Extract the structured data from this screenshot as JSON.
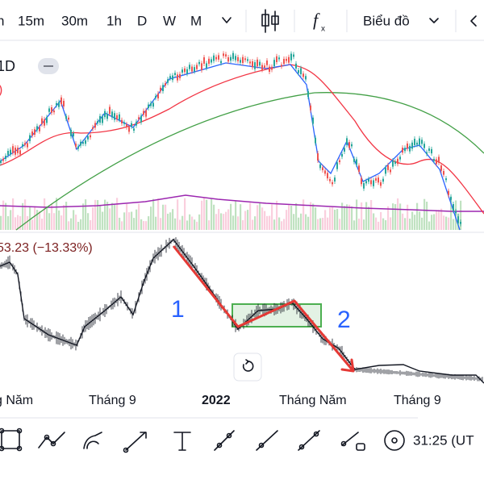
{
  "toolbar": {
    "intervals": [
      "h",
      "15m",
      "30m",
      "1h",
      "D",
      "W",
      "M"
    ],
    "chart_type": "Biểu đồ"
  },
  "main_chart": {
    "symbol_interval": "1D",
    "paren": ")"
  },
  "comparison_chart": {
    "change": "53.23 (−13.33%)",
    "annotations": [
      "1",
      "2"
    ]
  },
  "x_axis": {
    "labels": [
      "g Năm",
      "Tháng 9",
      "2022",
      "Tháng Năm",
      "Tháng 9"
    ]
  },
  "bottom_bar": {
    "time": "31:25 (UT"
  }
}
